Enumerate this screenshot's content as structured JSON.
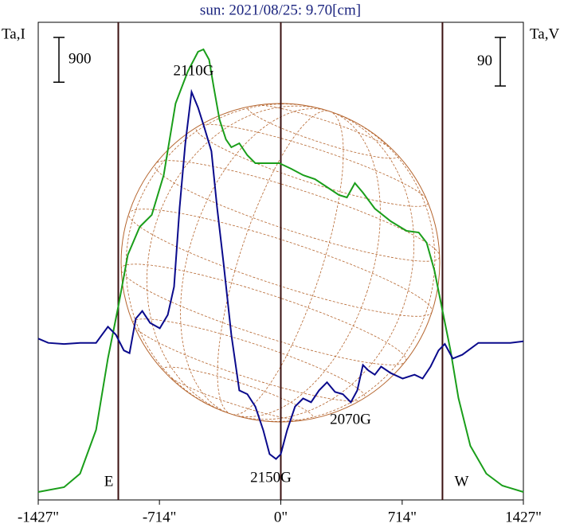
{
  "chart_data": {
    "type": "line",
    "title": "sun: 2021/08/25: 9.70[cm]",
    "ylabel": "Ta,I",
    "y2label": "Ta,V",
    "xlim": [
      -1427,
      1427
    ],
    "xticks": [
      {
        "value": -1427,
        "label": "-1427\""
      },
      {
        "value": -714,
        "label": "-714\""
      },
      {
        "value": 0,
        "label": "0\""
      },
      {
        "value": 714,
        "label": "714\""
      },
      {
        "value": 1427,
        "label": "1427\""
      }
    ],
    "ylim": [
      0,
      9600
    ],
    "y2lim": [
      -290,
      595
    ],
    "scale_bars": [
      {
        "value": 900,
        "axis": "y"
      },
      {
        "value": 90,
        "axis": "y2"
      }
    ],
    "limb_lines": [
      {
        "label": "E",
        "x": -956
      },
      {
        "x": 0
      },
      {
        "label": "W",
        "x": 951
      }
    ],
    "annotations": [
      {
        "text": "2110G"
      },
      {
        "text": "2150G"
      },
      {
        "text": "2070G"
      }
    ],
    "series": [
      {
        "name": "Ta,I",
        "color": "#1a9e1a",
        "axis": "y",
        "x": [
          -1427,
          -1275,
          -1181,
          -1087,
          -1017,
          -956,
          -900,
          -830,
          -759,
          -689,
          -619,
          -548,
          -487,
          -455,
          -422,
          -394,
          -361,
          -323,
          -291,
          -244,
          -197,
          -150,
          -80,
          -9,
          61,
          131,
          201,
          272,
          342,
          389,
          436,
          483,
          553,
          647,
          740,
          811,
          858,
          904,
          951,
          998,
          1045,
          1115,
          1209,
          1303,
          1427
        ],
        "values": [
          160,
          256,
          528,
          1408,
          2848,
          3888,
          4928,
          5488,
          5728,
          6528,
          7968,
          8608,
          9008,
          9056,
          8848,
          8288,
          7648,
          7248,
          7088,
          7168,
          6928,
          6768,
          6768,
          6768,
          6656,
          6528,
          6448,
          6288,
          6128,
          6080,
          6368,
          6176,
          5856,
          5600,
          5408,
          5376,
          5168,
          4608,
          3808,
          3008,
          2048,
          1088,
          528,
          288,
          160
        ]
      },
      {
        "name": "Ta,V",
        "color": "#0a0a8c",
        "axis": "y2",
        "x": [
          -1427,
          -1368,
          -1275,
          -1181,
          -1087,
          -1017,
          -970,
          -923,
          -890,
          -853,
          -815,
          -769,
          -712,
          -665,
          -628,
          -595,
          -562,
          -525,
          -487,
          -450,
          -408,
          -375,
          -337,
          -291,
          -244,
          -197,
          -150,
          -103,
          -66,
          -28,
          0,
          37,
          84,
          131,
          178,
          225,
          272,
          319,
          365,
          412,
          450,
          483,
          515,
          553,
          590,
          647,
          717,
          787,
          834,
          881,
          928,
          965,
          1012,
          1068,
          1162,
          1256,
          1350,
          1427
        ],
        "values": [
          9,
          1,
          -1,
          1,
          1,
          31,
          16,
          -13,
          -18,
          46,
          60,
          38,
          28,
          53,
          105,
          252,
          370,
          466,
          437,
          400,
          356,
          252,
          149,
          16,
          -87,
          -94,
          -117,
          -161,
          -205,
          -214,
          -205,
          -161,
          -117,
          -102,
          -109,
          -87,
          -72,
          -90,
          -94,
          -109,
          -87,
          -40,
          -50,
          -58,
          -43,
          -55,
          -65,
          -58,
          -65,
          -43,
          -13,
          -1,
          -28,
          -21,
          1,
          1,
          1,
          4
        ]
      }
    ]
  }
}
